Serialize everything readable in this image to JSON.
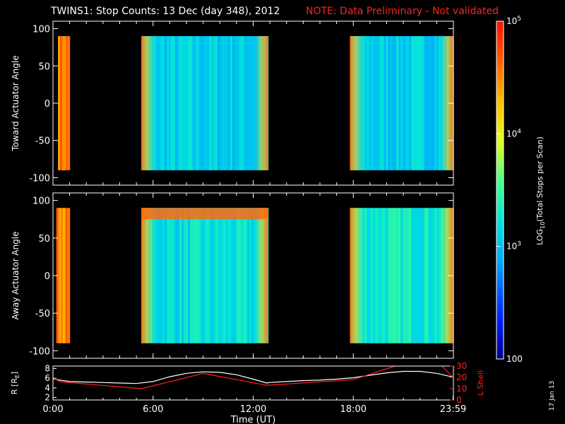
{
  "header": {
    "title": "TWINS1: Stop Counts: 13 Dec (day 348), 2012",
    "note": "NOTE: Data Preliminary - Not validated"
  },
  "stamp": "17 Jan 13",
  "colors": {
    "background": "#000000",
    "axes": "#ffffff",
    "note": "#ff2020",
    "l_shell": "#ff2020",
    "r_line": "#ffffff"
  },
  "chart_data": [
    {
      "type": "heatmap",
      "panel": "toward",
      "ylabel": "Toward Actuator Angle",
      "ylim": [
        -110,
        110
      ],
      "yticks": [
        100,
        50,
        0,
        -50,
        -100
      ],
      "xlim": [
        0,
        24
      ],
      "x_unit": "hours UT",
      "data_extent": [
        -90,
        90
      ],
      "segments": [
        {
          "start": 0.3,
          "end": 1.0,
          "level": 4.55
        },
        {
          "start": 5.3,
          "end": 12.9,
          "level": 3.1,
          "edge_high": true
        },
        {
          "start": 17.8,
          "end": 24.0,
          "level": 3.1,
          "edge_high": true
        }
      ]
    },
    {
      "type": "heatmap",
      "panel": "away",
      "ylabel": "Away Actuator Angle",
      "ylim": [
        -110,
        110
      ],
      "yticks": [
        100,
        50,
        0,
        -50,
        -100
      ],
      "xlim": [
        0,
        24
      ],
      "x_unit": "hours UT",
      "data_extent": [
        -90,
        90
      ],
      "segments": [
        {
          "start": 0.2,
          "end": 1.0,
          "level": 4.5
        },
        {
          "start": 5.3,
          "end": 12.9,
          "level": 3.2,
          "edge_high": true,
          "band_high": [
            75,
            90
          ]
        },
        {
          "start": 17.8,
          "end": 24.0,
          "level": 3.3,
          "edge_high": true
        }
      ]
    },
    {
      "type": "line",
      "panel": "orbit",
      "ylabel": "R [R",
      "ylabel_sub": "E",
      "ylabel_close": "]",
      "ylim": [
        1.5,
        8.5
      ],
      "yticks": [
        2,
        4,
        6,
        8
      ],
      "y2label": "L Shell",
      "y2lim": [
        0,
        30
      ],
      "y2ticks": [
        0,
        10,
        20,
        30
      ],
      "xlabel": "Time (UT)",
      "xticks": [
        "0:00",
        "6:00",
        "12:00",
        "18:00",
        "23:59"
      ],
      "xtick_values": [
        0,
        6,
        12,
        18,
        23.98
      ],
      "series": [
        {
          "axis": "left",
          "color": "#ffffff",
          "x": [
            0,
            1,
            2,
            3,
            4,
            5,
            6,
            7,
            8,
            9,
            10,
            11,
            12,
            12.8,
            13,
            14,
            15,
            16,
            17,
            18,
            19,
            20,
            21,
            22,
            23,
            24
          ],
          "y": [
            5.8,
            5.3,
            5.2,
            5.1,
            5.0,
            4.9,
            5.3,
            6.3,
            7.0,
            7.3,
            7.2,
            6.7,
            5.8,
            5.0,
            5.1,
            5.3,
            5.5,
            5.6,
            5.8,
            6.1,
            6.6,
            7.1,
            7.4,
            7.4,
            7.0,
            6.2
          ]
        },
        {
          "axis": "right",
          "color": "#ff2020",
          "x": [
            0,
            0.5,
            5.3,
            9,
            12.8,
            18,
            20.5,
            21.5,
            22.5,
            23.3,
            24
          ],
          "y": [
            19,
            16,
            10,
            23.5,
            13,
            18,
            30,
            34,
            34,
            30,
            20
          ]
        }
      ]
    }
  ],
  "colorbar": {
    "label": "LOG",
    "label_sub": "10",
    "label_rest": "(Total Stops per Scan)",
    "ticks": [
      {
        "value": 5,
        "base": "10",
        "exp": "5"
      },
      {
        "value": 4,
        "base": "10",
        "exp": "4"
      },
      {
        "value": 3,
        "base": "10",
        "exp": "3"
      },
      {
        "value": 2,
        "base": "100",
        "exp": ""
      }
    ],
    "range": [
      2,
      5
    ]
  }
}
